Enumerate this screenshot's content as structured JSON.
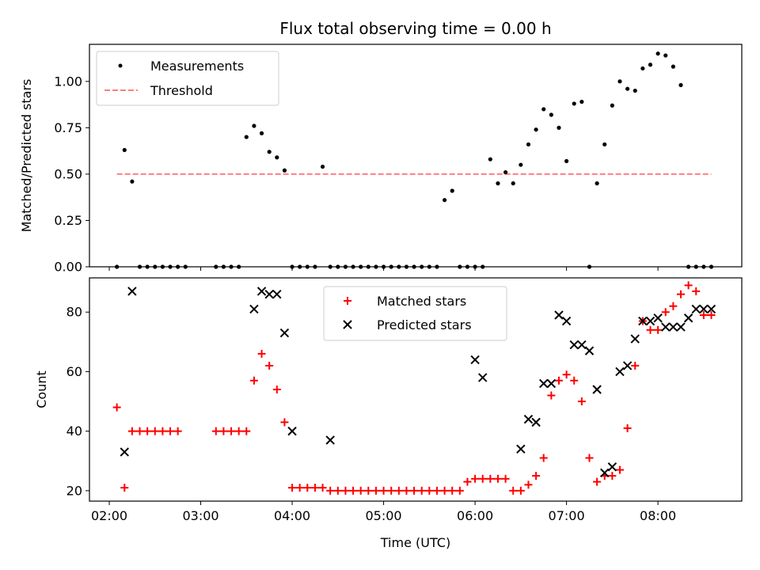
{
  "chart_data": [
    {
      "type": "scatter",
      "title": "Flux total observing time = 0.00 h",
      "xlabel": "",
      "ylabel": "Matched/Predicted stars",
      "xlim": [
        "01:47",
        "08:55"
      ],
      "ylim": [
        0,
        1.2
      ],
      "yticks": [
        0.0,
        0.25,
        0.5,
        0.75,
        1.0
      ],
      "ytick_labels": [
        "0.00",
        "0.25",
        "0.50",
        "0.75",
        "1.00"
      ],
      "legend_position": "upper-left",
      "series": [
        {
          "name": "Measurements",
          "marker": "dot",
          "color": "#000000",
          "x": [
            "02:05",
            "02:10",
            "02:15",
            "02:20",
            "02:25",
            "02:30",
            "02:35",
            "02:40",
            "02:45",
            "02:50",
            "03:10",
            "03:15",
            "03:20",
            "03:25",
            "03:30",
            "03:35",
            "03:40",
            "03:45",
            "03:50",
            "03:55",
            "04:00",
            "04:05",
            "04:10",
            "04:15",
            "04:20",
            "04:25",
            "04:30",
            "04:35",
            "04:40",
            "04:45",
            "04:50",
            "04:55",
            "05:00",
            "05:05",
            "05:10",
            "05:15",
            "05:20",
            "05:25",
            "05:30",
            "05:35",
            "05:40",
            "05:45",
            "05:50",
            "05:55",
            "06:00",
            "06:05",
            "06:10",
            "06:15",
            "06:20",
            "06:25",
            "06:30",
            "06:35",
            "06:40",
            "06:45",
            "06:50",
            "06:55",
            "07:00",
            "07:05",
            "07:10",
            "07:15",
            "07:20",
            "07:25",
            "07:30",
            "07:35",
            "07:40",
            "07:45",
            "07:50",
            "07:55",
            "08:00",
            "08:05",
            "08:10",
            "08:15",
            "08:20",
            "08:25",
            "08:30",
            "08:35"
          ],
          "y": [
            0.0,
            0.63,
            0.46,
            0.0,
            0.0,
            0.0,
            0.0,
            0.0,
            0.0,
            0.0,
            0.0,
            0.0,
            0.0,
            0.0,
            0.7,
            0.76,
            0.72,
            0.62,
            0.59,
            0.52,
            0.0,
            0.0,
            0.0,
            0.0,
            0.54,
            0.0,
            0.0,
            0.0,
            0.0,
            0.0,
            0.0,
            0.0,
            0.0,
            0.0,
            0.0,
            0.0,
            0.0,
            0.0,
            0.0,
            0.0,
            0.36,
            0.41,
            0.0,
            0.0,
            0.0,
            0.0,
            0.58,
            0.45,
            0.51,
            0.45,
            0.55,
            0.66,
            0.74,
            0.85,
            0.82,
            0.75,
            0.57,
            0.88,
            0.89,
            0.0,
            0.45,
            0.66,
            0.87,
            1.0,
            0.96,
            0.95,
            1.07,
            1.09,
            1.15,
            1.14,
            1.08,
            0.98,
            0.0,
            0.0,
            0.0,
            0.0
          ]
        },
        {
          "name": "Threshold",
          "style": "dashed",
          "color": "#ff7f7f",
          "x": [
            "02:05",
            "08:35"
          ],
          "y": [
            0.5,
            0.5
          ]
        }
      ]
    },
    {
      "type": "scatter",
      "title": "",
      "xlabel": "Time (UTC)",
      "ylabel": "Count",
      "xlim": [
        "01:47",
        "08:55"
      ],
      "ylim": [
        16.5,
        91.5
      ],
      "yticks": [
        20,
        40,
        60,
        80
      ],
      "ytick_labels": [
        "20",
        "40",
        "60",
        "80"
      ],
      "xticks": [
        "02:00",
        "03:00",
        "04:00",
        "05:00",
        "06:00",
        "07:00",
        "08:00"
      ],
      "xtick_labels": [
        "02:00",
        "03:00",
        "04:00",
        "05:00",
        "06:00",
        "07:00",
        "08:00"
      ],
      "legend_position": "upper-center",
      "series": [
        {
          "name": "Matched stars",
          "marker": "plus",
          "color": "#ff0000",
          "x": [
            "02:05",
            "02:10",
            "02:15",
            "02:20",
            "02:25",
            "02:30",
            "02:35",
            "02:40",
            "02:45",
            "03:10",
            "03:15",
            "03:20",
            "03:25",
            "03:30",
            "03:35",
            "03:40",
            "03:45",
            "03:50",
            "03:55",
            "04:00",
            "04:05",
            "04:10",
            "04:15",
            "04:20",
            "04:25",
            "04:30",
            "04:35",
            "04:40",
            "04:45",
            "04:50",
            "04:55",
            "05:00",
            "05:05",
            "05:10",
            "05:15",
            "05:20",
            "05:25",
            "05:30",
            "05:35",
            "05:40",
            "05:45",
            "05:50",
            "05:55",
            "06:00",
            "06:05",
            "06:10",
            "06:15",
            "06:20",
            "06:25",
            "06:30",
            "06:35",
            "06:40",
            "06:45",
            "06:50",
            "06:55",
            "07:00",
            "07:05",
            "07:10",
            "07:15",
            "07:20",
            "07:25",
            "07:30",
            "07:35",
            "07:40",
            "07:45",
            "07:50",
            "07:55",
            "08:00",
            "08:05",
            "08:10",
            "08:15",
            "08:20",
            "08:25",
            "08:30",
            "08:35"
          ],
          "y": [
            48,
            21,
            40,
            40,
            40,
            40,
            40,
            40,
            40,
            40,
            40,
            40,
            40,
            40,
            57,
            66,
            62,
            54,
            43,
            21,
            21,
            21,
            21,
            21,
            20,
            20,
            20,
            20,
            20,
            20,
            20,
            20,
            20,
            20,
            20,
            20,
            20,
            20,
            20,
            20,
            20,
            20,
            23,
            24,
            24,
            24,
            24,
            24,
            20,
            20,
            22,
            25,
            31,
            52,
            57,
            59,
            57,
            50,
            31,
            23,
            25,
            25,
            27,
            41,
            62,
            77,
            74,
            74,
            80,
            82,
            86,
            89,
            87,
            79,
            79
          ]
        },
        {
          "name": "Predicted stars",
          "marker": "x",
          "color": "#000000",
          "x": [
            "02:10",
            "02:15",
            "03:35",
            "03:40",
            "03:45",
            "03:50",
            "03:55",
            "04:00",
            "04:25",
            "06:00",
            "06:05",
            "06:30",
            "06:35",
            "06:40",
            "06:45",
            "06:50",
            "06:55",
            "07:00",
            "07:05",
            "07:10",
            "07:15",
            "07:20",
            "07:25",
            "07:30",
            "07:35",
            "07:40",
            "07:45",
            "07:50",
            "07:55",
            "08:00",
            "08:05",
            "08:10",
            "08:15",
            "08:20",
            "08:25",
            "08:30",
            "08:35"
          ],
          "y": [
            33,
            87,
            81,
            87,
            86,
            86,
            73,
            40,
            37,
            64,
            58,
            34,
            44,
            43,
            56,
            56,
            79,
            77,
            69,
            69,
            67,
            54,
            26,
            28,
            60,
            62,
            71,
            77,
            77,
            78,
            75,
            75,
            75,
            78,
            81,
            81,
            81
          ]
        }
      ]
    }
  ]
}
